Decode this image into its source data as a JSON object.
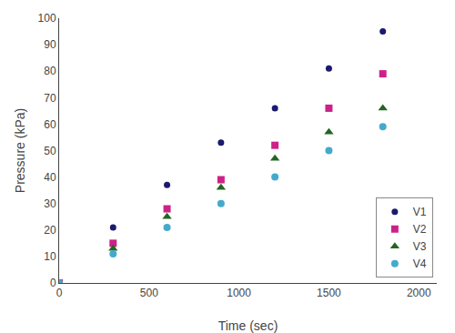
{
  "chart_data": {
    "type": "scatter",
    "xlabel": "Time (sec)",
    "ylabel": "Pressure (kPa)",
    "xlim": [
      0,
      2100
    ],
    "ylim": [
      0,
      100
    ],
    "xticks": [
      0,
      500,
      1000,
      1500,
      2000
    ],
    "yticks": [
      0,
      10,
      20,
      30,
      40,
      50,
      60,
      70,
      80,
      90,
      100
    ],
    "series": [
      {
        "name": "V1",
        "color": "#1a1a6e",
        "marker": "point",
        "x": [
          0,
          300,
          600,
          900,
          1200,
          1500,
          1800
        ],
        "values": [
          0,
          21,
          37,
          53,
          66,
          81,
          95
        ]
      },
      {
        "name": "V2",
        "color": "#cc2288",
        "marker": "square",
        "x": [
          0,
          300,
          600,
          900,
          1200,
          1500,
          1800
        ],
        "values": [
          0,
          15,
          28,
          39,
          52,
          66,
          79
        ]
      },
      {
        "name": "V3",
        "color": "#226622",
        "marker": "triangle",
        "x": [
          0,
          300,
          600,
          900,
          1200,
          1500,
          1800
        ],
        "values": [
          0,
          13,
          25,
          36,
          47,
          57,
          66
        ]
      },
      {
        "name": "V4",
        "color": "#44aacc",
        "marker": "circle",
        "x": [
          0,
          300,
          600,
          900,
          1200,
          1500,
          1800
        ],
        "values": [
          0,
          11,
          21,
          30,
          40,
          50,
          59
        ]
      }
    ],
    "legend": "lower right",
    "grid": false
  }
}
